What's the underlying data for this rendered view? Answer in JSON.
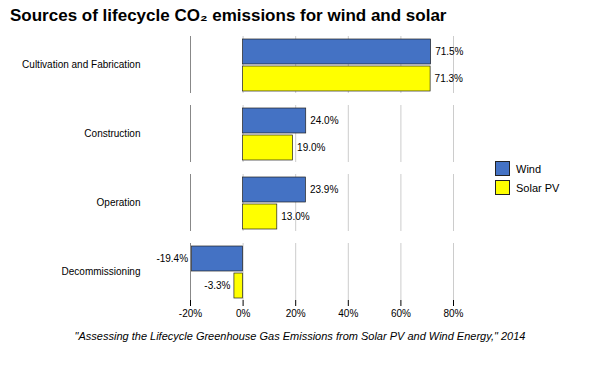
{
  "chart_data": {
    "type": "bar",
    "orientation": "horizontal",
    "title": "Sources of lifecycle CO₂ emissions for wind and solar",
    "footnote": "\"Assessing the Lifecycle Greenhouse Gas Emissions from Solar PV and Wind Energy,\" 2014",
    "categories": [
      "Cultivation and Fabrication",
      "Construction",
      "Operation",
      "Decommissioning"
    ],
    "series": [
      {
        "name": "Wind",
        "color": "#4472C4",
        "values": [
          71.5,
          24.0,
          23.9,
          -19.4
        ],
        "value_labels": [
          "71.5%",
          "24.0%",
          "23.9%",
          "-19.4%"
        ]
      },
      {
        "name": "Solar PV",
        "color": "#FFFF00",
        "values": [
          71.3,
          19.0,
          13.0,
          -3.3
        ],
        "value_labels": [
          "71.3%",
          "19.0%",
          "13.0%",
          "-3.3%"
        ]
      }
    ],
    "xlim": [
      -20,
      80
    ],
    "xticks": [
      {
        "value": -20,
        "label": "-20%"
      },
      {
        "value": 0,
        "label": "0%"
      },
      {
        "value": 20,
        "label": "20%"
      },
      {
        "value": 40,
        "label": "40%"
      },
      {
        "value": 60,
        "label": "60%"
      },
      {
        "value": 80,
        "label": "80%"
      }
    ],
    "grid": true,
    "legend": "right",
    "data_labels": true
  }
}
